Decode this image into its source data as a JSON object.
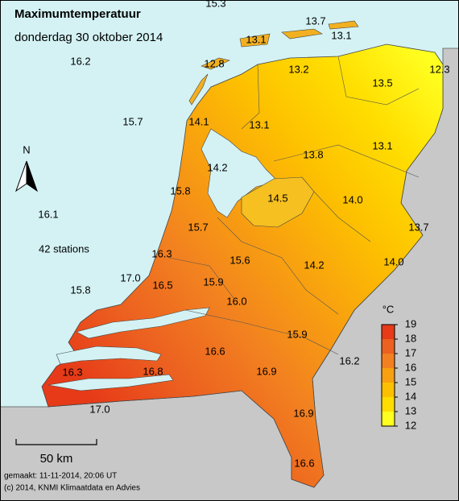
{
  "header": {
    "title": "Maximumtemperatuur",
    "date": "donderdag 30 oktober 2014"
  },
  "station_values": [
    "15.3",
    "13.7",
    "13.1",
    "13.1",
    "16.2",
    "12.8",
    "12.3",
    "13.2",
    "13.5",
    "15.7",
    "14.1",
    "13.1",
    "13.8",
    "13.1",
    "14.2",
    "15.8",
    "14.5",
    "14.0",
    "16.1",
    "13.7",
    "15.7",
    "16.3",
    "15.6",
    "14.2",
    "14.0",
    "17.0",
    "15.9",
    "16.5",
    "15.8",
    "16.0",
    "15.9",
    "16.6",
    "16.2",
    "16.9",
    "16.3",
    "16.8",
    "16.9",
    "17.0",
    "16.6"
  ],
  "north_label": "N",
  "station_count": "42 stations",
  "legend": {
    "unit": "°C",
    "ticks": [
      12,
      13,
      14,
      15,
      16,
      17,
      18,
      19
    ],
    "colors": [
      "#ffff20",
      "#ffdd00",
      "#fdc000",
      "#f8a010",
      "#f28020",
      "#ec6020",
      "#e63a18"
    ]
  },
  "scale_label": "50 km",
  "footer": {
    "made": "gemaakt: 11-11-2014, 20:06 UT",
    "copyright": "(c) 2014, KNMI Klimaatdata en Advies"
  }
}
